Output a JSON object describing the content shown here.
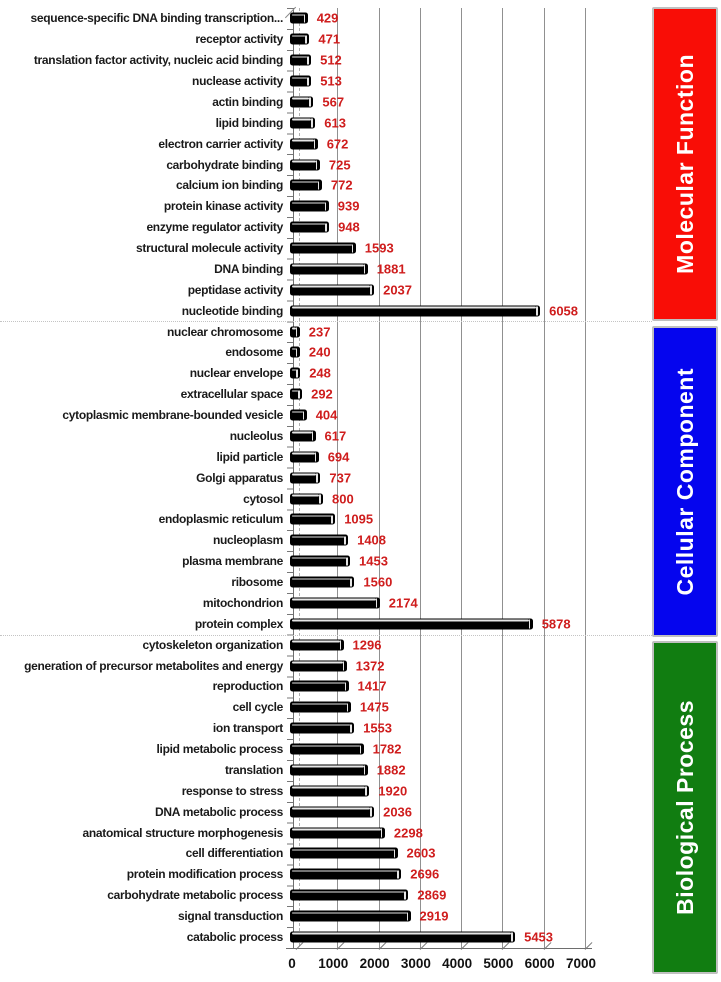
{
  "chart_data": {
    "type": "bar",
    "orientation": "horizontal",
    "title": "",
    "xlabel": "",
    "ylabel": "",
    "xlim": [
      0,
      7000
    ],
    "x_ticks": [
      "0",
      "1000",
      "2000",
      "3000",
      "4000",
      "5000",
      "6000",
      "7000"
    ],
    "grid": "vertical",
    "bar_color": "#000000",
    "value_label_color": "#cf1d1d",
    "gridline_color": "#909090",
    "panel_border_color": "#c0c0c0",
    "sections": [
      {
        "name": "Molecular Function",
        "color": "#f90d06",
        "items": [
          {
            "label": "sequence-specific DNA binding transcription...",
            "value": 429
          },
          {
            "label": "receptor activity",
            "value": 471
          },
          {
            "label": "translation factor activity, nucleic acid binding",
            "value": 512
          },
          {
            "label": "nuclease activity",
            "value": 513
          },
          {
            "label": "actin binding",
            "value": 567
          },
          {
            "label": "lipid binding",
            "value": 613
          },
          {
            "label": "electron carrier activity",
            "value": 672
          },
          {
            "label": "carbohydrate binding",
            "value": 725
          },
          {
            "label": "calcium ion binding",
            "value": 772
          },
          {
            "label": "protein kinase activity",
            "value": 939
          },
          {
            "label": "enzyme regulator activity",
            "value": 948
          },
          {
            "label": "structural molecule activity",
            "value": 1593
          },
          {
            "label": "DNA binding",
            "value": 1881
          },
          {
            "label": "peptidase activity",
            "value": 2037
          },
          {
            "label": "nucleotide binding",
            "value": 6058
          }
        ]
      },
      {
        "name": "Cellular Component",
        "color": "#0505ee",
        "items": [
          {
            "label": "nuclear chromosome",
            "value": 237
          },
          {
            "label": "endosome",
            "value": 240
          },
          {
            "label": "nuclear envelope",
            "value": 248
          },
          {
            "label": "extracellular space",
            "value": 292
          },
          {
            "label": "cytoplasmic membrane-bounded vesicle",
            "value": 404
          },
          {
            "label": "nucleolus",
            "value": 617
          },
          {
            "label": "lipid particle",
            "value": 694
          },
          {
            "label": "Golgi apparatus",
            "value": 737
          },
          {
            "label": "cytosol",
            "value": 800
          },
          {
            "label": "endoplasmic reticulum",
            "value": 1095
          },
          {
            "label": "nucleoplasm",
            "value": 1408
          },
          {
            "label": "plasma membrane",
            "value": 1453
          },
          {
            "label": "ribosome",
            "value": 1560
          },
          {
            "label": "mitochondrion",
            "value": 2174
          },
          {
            "label": "protein complex",
            "value": 5878
          }
        ]
      },
      {
        "name": "Biological Process",
        "color": "#117d11",
        "items": [
          {
            "label": "cytoskeleton organization",
            "value": 1296
          },
          {
            "label": "generation of precursor metabolites and energy",
            "value": 1372
          },
          {
            "label": "reproduction",
            "value": 1417
          },
          {
            "label": "cell cycle",
            "value": 1475
          },
          {
            "label": "ion transport",
            "value": 1553
          },
          {
            "label": "lipid metabolic process",
            "value": 1782
          },
          {
            "label": "translation",
            "value": 1882
          },
          {
            "label": "response to stress",
            "value": 1920
          },
          {
            "label": "DNA metabolic process",
            "value": 2036
          },
          {
            "label": "anatomical structure morphogenesis",
            "value": 2298
          },
          {
            "label": "cell differentiation",
            "value": 2603
          },
          {
            "label": "protein modification process",
            "value": 2696
          },
          {
            "label": "carbohydrate metabolic process",
            "value": 2869
          },
          {
            "label": "signal transduction",
            "value": 2919
          },
          {
            "label": "catabolic process",
            "value": 5453
          }
        ]
      }
    ]
  }
}
